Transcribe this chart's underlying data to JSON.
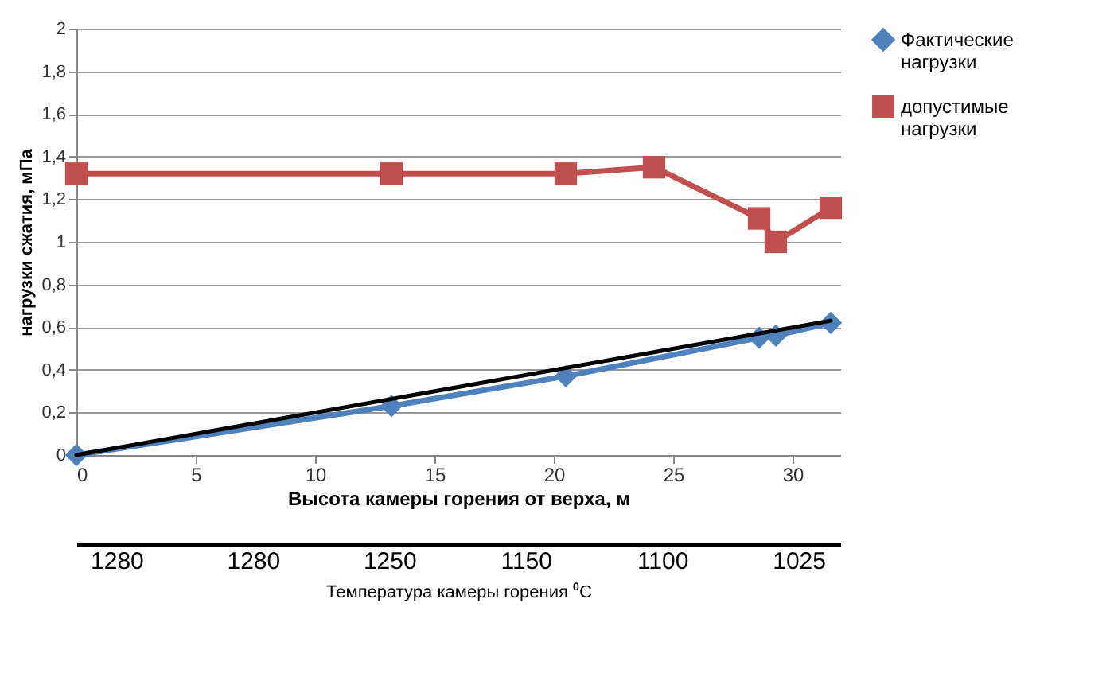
{
  "chart_data": {
    "type": "line",
    "xlabel": "Высота камеры горения  от верха, м",
    "ylabel": "нагрузки сжатия, мПа",
    "x2label": "Температура камеры горения ⁰C",
    "xlim": [
      0,
      32
    ],
    "xticks": [
      0,
      5,
      10,
      15,
      20,
      25,
      30
    ],
    "ylim": [
      0,
      2
    ],
    "yticks": [
      {
        "value": 0,
        "label": "0"
      },
      {
        "value": 0.2,
        "label": "0,2"
      },
      {
        "value": 0.4,
        "label": "0,4"
      },
      {
        "value": 0.6,
        "label": "0,6"
      },
      {
        "value": 0.8,
        "label": "0,8"
      },
      {
        "value": 1,
        "label": "1"
      },
      {
        "value": 1.2,
        "label": "1,2"
      },
      {
        "value": 1.4,
        "label": "1,4"
      },
      {
        "value": 1.6,
        "label": "1,6"
      },
      {
        "value": 1.8,
        "label": "1,8"
      },
      {
        "value": 2,
        "label": "2"
      }
    ],
    "annotations": [
      "1280",
      "1280",
      "1250",
      "1150",
      "1100",
      "1025"
    ],
    "grid": "y",
    "legend": "right",
    "line_style": "solid",
    "series": [
      {
        "name": "Фактические нагрузки",
        "color": "#4f81bd",
        "marker": "diamond",
        "x": [
          0,
          13.2,
          20.5,
          28.6,
          29.3,
          31.6
        ],
        "values": [
          0,
          0.23,
          0.37,
          0.55,
          0.56,
          0.62
        ]
      },
      {
        "name": "допустимые нагрузки",
        "color": "#c0504d",
        "marker": "square",
        "x": [
          0,
          13.2,
          20.5,
          24.2,
          28.6,
          29.3,
          31.6
        ],
        "values": [
          1.32,
          1.32,
          1.32,
          1.35,
          1.11,
          1.0,
          1.16
        ]
      },
      {
        "type": "line",
        "color": "#000000",
        "marker": "none",
        "x": [
          0,
          31.6
        ],
        "values": [
          0,
          0.63
        ]
      }
    ]
  }
}
